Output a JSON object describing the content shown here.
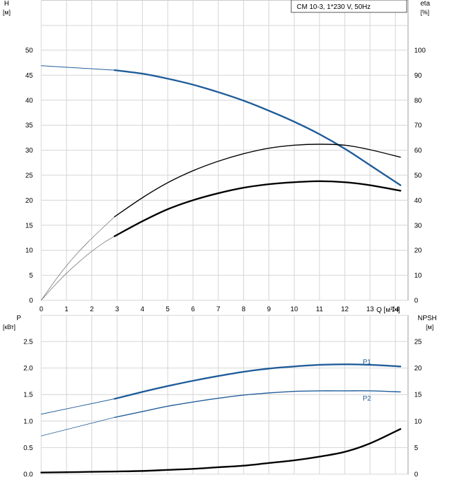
{
  "title": "CM 10-3, 1*230 V, 50Hz",
  "colors": {
    "blue": "#1f5c99",
    "black": "#000000",
    "grid": "#d4d4d4",
    "thin": "#777777"
  },
  "chart_data": [
    {
      "id": "top",
      "type": "line",
      "xlabel": "Q [м³/ч]",
      "xlim": [
        0,
        14.5
      ],
      "xticks": [
        0,
        1,
        2,
        3,
        4,
        5,
        6,
        7,
        8,
        9,
        10,
        11,
        12,
        13,
        14
      ],
      "left_axis": {
        "label": "H",
        "unit": "[м]",
        "ylim": [
          0,
          50
        ],
        "ticks": [
          0,
          5,
          10,
          15,
          20,
          25,
          30,
          35,
          40,
          45,
          50
        ]
      },
      "right_axis": {
        "label": "eta",
        "unit": "[%]",
        "ylim": [
          0,
          100
        ],
        "ticks": [
          0,
          10,
          20,
          30,
          40,
          50,
          60,
          70,
          80,
          90,
          100
        ]
      },
      "series": [
        {
          "name": "H",
          "axis": "left",
          "color": "#1f5c99",
          "width": 1.0,
          "x": [
            0,
            2.9
          ],
          "y": [
            46.9,
            46.0
          ]
        },
        {
          "name": "H",
          "axis": "left",
          "color": "#1f5c99",
          "width": 2.4,
          "x": [
            2.9,
            4,
            5,
            6,
            7,
            8,
            9,
            10,
            11,
            12,
            13,
            14.2
          ],
          "y": [
            46.0,
            45.3,
            44.3,
            43.1,
            41.6,
            39.9,
            37.9,
            35.7,
            33.2,
            30.3,
            27.0,
            23.0
          ]
        },
        {
          "name": "eta_thin",
          "axis": "left",
          "color": "#777777",
          "width": 0.8,
          "x": [
            0,
            0.5,
            1,
            1.5,
            2,
            2.5,
            2.9
          ],
          "y": [
            0,
            3.6,
            6.9,
            9.8,
            12.4,
            14.8,
            16.7
          ]
        },
        {
          "name": "eta",
          "axis": "left",
          "color": "#000000",
          "width": 1.4,
          "x": [
            2.9,
            4,
            5,
            6,
            7,
            8,
            9,
            10,
            11,
            12,
            13,
            14.2
          ],
          "y": [
            16.7,
            20.5,
            23.5,
            25.9,
            27.8,
            29.3,
            30.4,
            31.0,
            31.2,
            31.0,
            30.1,
            28.6
          ]
        },
        {
          "name": "eta2_thin",
          "axis": "left",
          "color": "#777777",
          "width": 0.8,
          "x": [
            0,
            0.5,
            1,
            1.5,
            2,
            2.5,
            2.9
          ],
          "y": [
            0,
            2.8,
            5.4,
            7.7,
            9.8,
            11.6,
            12.8
          ]
        },
        {
          "name": "eta2",
          "axis": "left",
          "color": "#000000",
          "width": 2.4,
          "x": [
            2.9,
            4,
            5,
            6,
            7,
            8,
            9,
            10,
            11,
            12,
            13,
            14.2
          ],
          "y": [
            12.8,
            15.8,
            18.2,
            20.0,
            21.4,
            22.5,
            23.2,
            23.6,
            23.8,
            23.6,
            23.0,
            21.9
          ]
        }
      ]
    },
    {
      "id": "bottom",
      "type": "line",
      "xlim": [
        0,
        14.5
      ],
      "left_axis": {
        "label": "P",
        "unit": "[кВт]",
        "ylim": [
          0,
          2.5
        ],
        "ticks": [
          "0.0",
          "0.5",
          "1.0",
          "1.5",
          "2.0",
          "2.5"
        ]
      },
      "right_axis": {
        "label": "NPSH",
        "unit": "[м]",
        "ylim": [
          0,
          25
        ],
        "ticks": [
          0,
          5,
          10,
          15,
          20,
          25
        ]
      },
      "series": [
        {
          "name": "P1",
          "axis": "left",
          "color": "#1f5c99",
          "width": 1.0,
          "x": [
            0,
            2.9
          ],
          "y": [
            1.13,
            1.42
          ]
        },
        {
          "name": "P1",
          "axis": "left",
          "color": "#1f5c99",
          "width": 2.4,
          "label": "P1",
          "x": [
            2.9,
            4,
            5,
            6,
            7,
            8,
            9,
            10,
            11,
            12,
            13,
            14.2
          ],
          "y": [
            1.42,
            1.55,
            1.66,
            1.76,
            1.85,
            1.93,
            1.99,
            2.03,
            2.06,
            2.07,
            2.06,
            2.03
          ]
        },
        {
          "name": "P2",
          "axis": "left",
          "color": "#1f5c99",
          "width": 0.8,
          "x": [
            0,
            2.9
          ],
          "y": [
            0.72,
            1.07
          ]
        },
        {
          "name": "P2",
          "axis": "left",
          "color": "#1f5c99",
          "width": 1.4,
          "label": "P2",
          "x": [
            2.9,
            4,
            5,
            6,
            7,
            8,
            9,
            10,
            11,
            12,
            13,
            14.2
          ],
          "y": [
            1.07,
            1.18,
            1.28,
            1.36,
            1.43,
            1.49,
            1.53,
            1.56,
            1.57,
            1.57,
            1.57,
            1.55
          ]
        },
        {
          "name": "NPSH",
          "axis": "right",
          "color": "#000000",
          "width": 2.4,
          "x": [
            0,
            2.9,
            4,
            5,
            6,
            7,
            8,
            9,
            10,
            11,
            12,
            13,
            14.2
          ],
          "y": [
            0.3,
            0.5,
            0.6,
            0.8,
            1.0,
            1.3,
            1.6,
            2.1,
            2.6,
            3.3,
            4.2,
            5.8,
            8.5
          ]
        }
      ]
    }
  ]
}
